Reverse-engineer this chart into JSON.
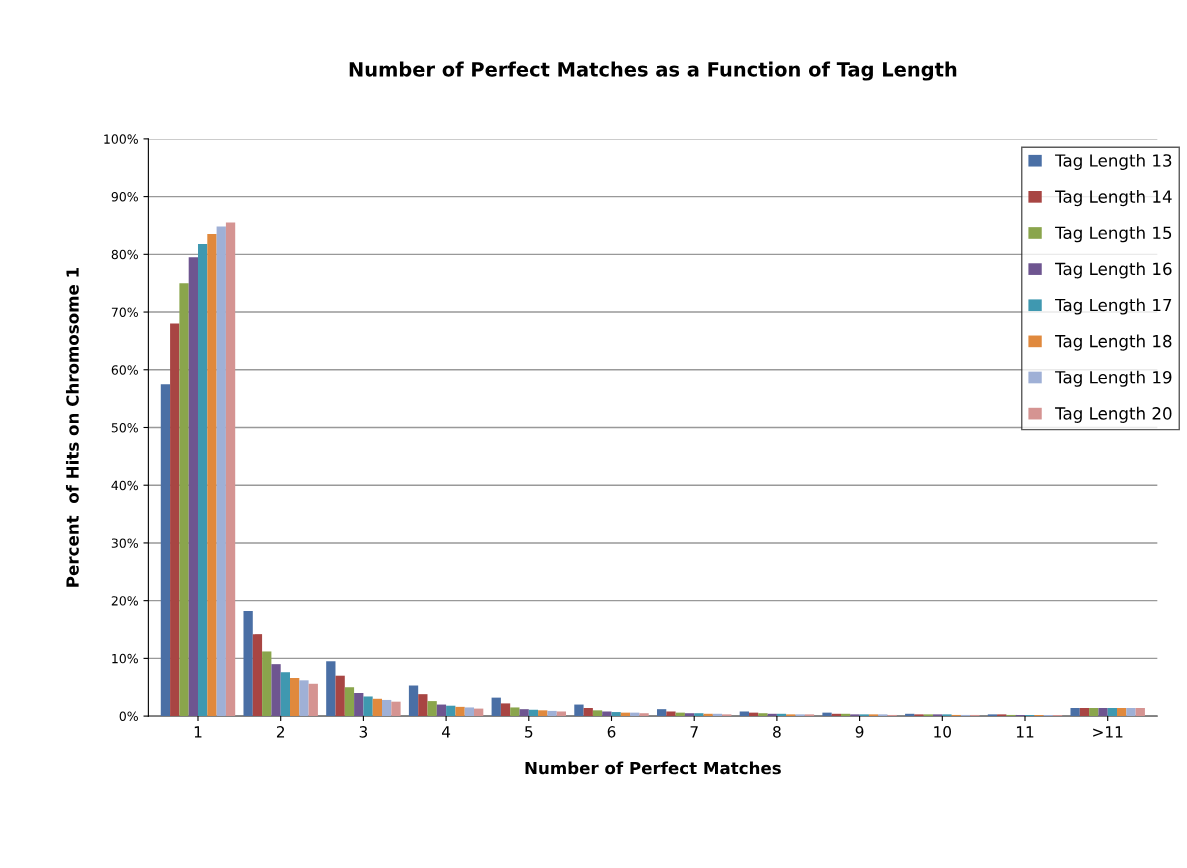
{
  "chart_data": {
    "type": "bar",
    "title": "Number of Perfect Matches as a Function of Tag Length",
    "xlabel": "Number of Perfect Matches",
    "ylabel": "Percent  of Hits on Chromosome 1",
    "categories": [
      "1",
      "2",
      "3",
      "4",
      "5",
      "6",
      "7",
      "8",
      "9",
      "10",
      "11",
      ">11"
    ],
    "series": [
      {
        "name": "Tag Length 13",
        "color": "#4a6fa5",
        "values": [
          57.5,
          18.2,
          9.5,
          5.3,
          3.2,
          2.0,
          1.2,
          0.8,
          0.6,
          0.4,
          0.3,
          1.4
        ]
      },
      {
        "name": "Tag Length 14",
        "color": "#a84543",
        "values": [
          68,
          14.2,
          7.0,
          3.8,
          2.2,
          1.4,
          0.8,
          0.6,
          0.4,
          0.3,
          0.3,
          1.4
        ]
      },
      {
        "name": "Tag Length 15",
        "color": "#8aa54c",
        "values": [
          75,
          11.2,
          5.0,
          2.6,
          1.5,
          1.0,
          0.6,
          0.5,
          0.4,
          0.3,
          0.2,
          1.4
        ]
      },
      {
        "name": "Tag Length 16",
        "color": "#6e5590",
        "values": [
          79.5,
          9.0,
          4.0,
          2.0,
          1.2,
          0.8,
          0.5,
          0.4,
          0.3,
          0.3,
          0.2,
          1.4
        ]
      },
      {
        "name": "Tag Length 17",
        "color": "#3f98b0",
        "values": [
          81.8,
          7.6,
          3.4,
          1.8,
          1.1,
          0.7,
          0.5,
          0.4,
          0.3,
          0.3,
          0.2,
          1.4
        ]
      },
      {
        "name": "Tag Length 18",
        "color": "#e0893d",
        "values": [
          83.5,
          6.6,
          3.0,
          1.6,
          1.0,
          0.6,
          0.4,
          0.3,
          0.3,
          0.2,
          0.2,
          1.4
        ]
      },
      {
        "name": "Tag Length 19",
        "color": "#9fb0d6",
        "values": [
          84.8,
          6.2,
          2.8,
          1.5,
          0.9,
          0.6,
          0.4,
          0.3,
          0.3,
          0.2,
          0.2,
          1.4
        ]
      },
      {
        "name": "Tag Length 20",
        "color": "#d59492",
        "values": [
          85.5,
          5.6,
          2.5,
          1.3,
          0.8,
          0.5,
          0.3,
          0.3,
          0.2,
          0.2,
          0.2,
          1.4
        ]
      }
    ],
    "ylim": [
      0,
      100
    ],
    "yticks": [
      {
        "value": 0,
        "label": "0%"
      },
      {
        "value": 10,
        "label": "10%"
      },
      {
        "value": 20,
        "label": "20%"
      },
      {
        "value": 30,
        "label": "30%"
      },
      {
        "value": 40,
        "label": "40%"
      },
      {
        "value": 50,
        "label": "50%"
      },
      {
        "value": 60,
        "label": "60%"
      },
      {
        "value": 70,
        "label": "70%"
      },
      {
        "value": 80,
        "label": "80%"
      },
      {
        "value": 90,
        "label": "90%"
      },
      {
        "value": 100,
        "label": "100%"
      }
    ],
    "grid": "y",
    "legend": "top right"
  }
}
